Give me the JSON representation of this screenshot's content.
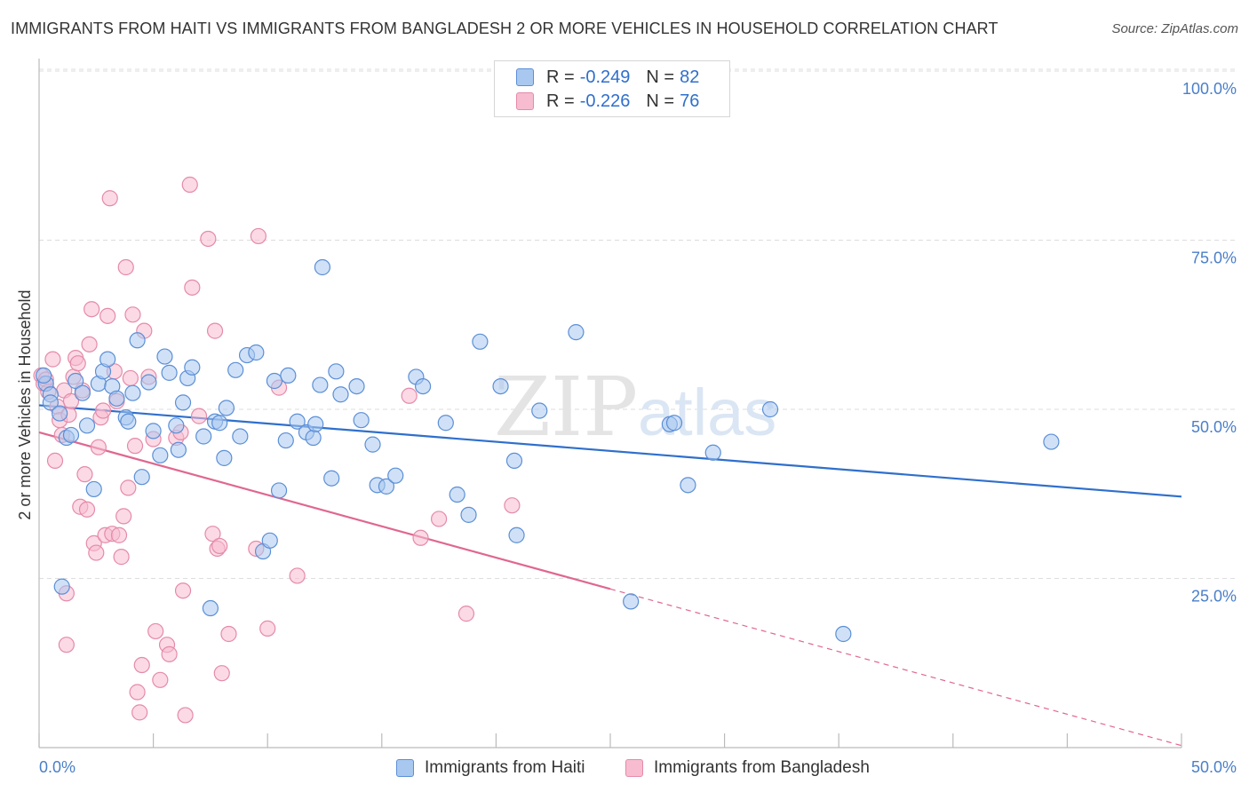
{
  "title": "IMMIGRANTS FROM HAITI VS IMMIGRANTS FROM BANGLADESH 2 OR MORE VEHICLES IN HOUSEHOLD CORRELATION CHART",
  "source": "Source: ZipAtlas.com",
  "watermark": "ZIPatlas",
  "colors": {
    "haiti_fill": "#a9c8f0",
    "haiti_stroke": "#5b8fd6",
    "haiti_line": "#2f6fcc",
    "bangladesh_fill": "#f7bcd0",
    "bangladesh_stroke": "#e58aa9",
    "bangladesh_line": "#e0678f",
    "grid": "#dddddd",
    "tick_text": "#4a7fc8"
  },
  "legend": {
    "haiti": {
      "r_label": "R =",
      "r_value": "-0.249",
      "n_label": "N =",
      "n_value": "82"
    },
    "bangladesh": {
      "r_label": "R =",
      "r_value": "-0.226",
      "n_label": "N =",
      "n_value": "76"
    }
  },
  "bottom_legend": {
    "haiti": "Immigrants from Haiti",
    "bangladesh": "Immigrants from Bangladesh"
  },
  "chart_data": {
    "type": "scatter",
    "title": "IMMIGRANTS FROM HAITI VS IMMIGRANTS FROM BANGLADESH 2 OR MORE VEHICLES IN HOUSEHOLD CORRELATION CHART",
    "xlabel": "",
    "ylabel": "2 or more Vehicles in Household",
    "xlim": [
      0,
      50
    ],
    "ylim": [
      0,
      100
    ],
    "x_tick_labels": [
      "0.0%",
      "50.0%"
    ],
    "y_ticks": [
      25,
      50,
      75,
      100
    ],
    "y_tick_labels": [
      "25.0%",
      "50.0%",
      "75.0%",
      "100.0%"
    ],
    "grid": true,
    "legend_position": "top-center",
    "series": [
      {
        "name": "Immigrants from Haiti",
        "r": -0.249,
        "n": 82,
        "trend": {
          "x": [
            0,
            50
          ],
          "y": [
            50.6,
            37.1
          ],
          "dashed_from_x": null
        },
        "points": [
          [
            0.3,
            53.8
          ],
          [
            0.5,
            52.2
          ],
          [
            0.5,
            51.0
          ],
          [
            0.9,
            49.4
          ],
          [
            1.0,
            23.8
          ],
          [
            1.2,
            45.8
          ],
          [
            1.4,
            46.2
          ],
          [
            1.6,
            54.2
          ],
          [
            1.9,
            52.4
          ],
          [
            2.1,
            47.6
          ],
          [
            2.4,
            38.2
          ],
          [
            2.6,
            53.8
          ],
          [
            2.8,
            55.6
          ],
          [
            3.0,
            57.4
          ],
          [
            3.2,
            53.4
          ],
          [
            3.4,
            51.6
          ],
          [
            3.8,
            48.8
          ],
          [
            3.9,
            48.2
          ],
          [
            4.1,
            52.4
          ],
          [
            4.3,
            60.2
          ],
          [
            4.5,
            40.0
          ],
          [
            4.8,
            54.0
          ],
          [
            5.0,
            46.8
          ],
          [
            5.3,
            43.2
          ],
          [
            5.5,
            57.8
          ],
          [
            5.7,
            55.4
          ],
          [
            6.0,
            47.6
          ],
          [
            6.1,
            44.0
          ],
          [
            6.3,
            51.0
          ],
          [
            6.5,
            54.6
          ],
          [
            6.7,
            56.2
          ],
          [
            7.2,
            46.0
          ],
          [
            7.5,
            20.6
          ],
          [
            7.7,
            48.2
          ],
          [
            7.9,
            48.0
          ],
          [
            8.1,
            42.8
          ],
          [
            8.2,
            50.2
          ],
          [
            8.6,
            55.8
          ],
          [
            8.8,
            46.0
          ],
          [
            9.1,
            58.0
          ],
          [
            9.5,
            58.4
          ],
          [
            9.8,
            29.0
          ],
          [
            10.1,
            30.6
          ],
          [
            10.3,
            54.2
          ],
          [
            10.5,
            38.0
          ],
          [
            10.8,
            45.4
          ],
          [
            10.9,
            55.0
          ],
          [
            11.3,
            48.2
          ],
          [
            11.7,
            46.6
          ],
          [
            12.0,
            45.8
          ],
          [
            12.1,
            47.8
          ],
          [
            12.3,
            53.6
          ],
          [
            12.4,
            71.0
          ],
          [
            12.8,
            39.8
          ],
          [
            13.0,
            55.6
          ],
          [
            13.2,
            52.2
          ],
          [
            13.9,
            53.4
          ],
          [
            14.1,
            48.4
          ],
          [
            14.6,
            44.8
          ],
          [
            14.8,
            38.8
          ],
          [
            15.2,
            38.6
          ],
          [
            15.6,
            40.2
          ],
          [
            16.5,
            54.8
          ],
          [
            16.8,
            53.4
          ],
          [
            17.8,
            48.0
          ],
          [
            18.3,
            37.4
          ],
          [
            18.8,
            34.4
          ],
          [
            19.3,
            60.0
          ],
          [
            20.2,
            53.4
          ],
          [
            20.8,
            42.4
          ],
          [
            20.9,
            31.4
          ],
          [
            21.9,
            49.8
          ],
          [
            23.5,
            61.4
          ],
          [
            25.9,
            21.6
          ],
          [
            27.6,
            47.8
          ],
          [
            27.8,
            48.0
          ],
          [
            28.4,
            38.8
          ],
          [
            29.5,
            43.6
          ],
          [
            32.0,
            50.0
          ],
          [
            35.2,
            16.8
          ],
          [
            44.3,
            45.2
          ],
          [
            0.2,
            55.0
          ]
        ]
      },
      {
        "name": "Immigrants from Bangladesh",
        "r": -0.226,
        "n": 76,
        "trend": {
          "x": [
            0,
            50
          ],
          "y": [
            46.6,
            0.3
          ],
          "dashed_from_x": 25.0
        },
        "points": [
          [
            0.1,
            55.0
          ],
          [
            0.2,
            53.8
          ],
          [
            0.3,
            54.4
          ],
          [
            0.4,
            52.6
          ],
          [
            0.6,
            57.4
          ],
          [
            0.7,
            42.4
          ],
          [
            0.8,
            50.4
          ],
          [
            0.9,
            48.4
          ],
          [
            1.0,
            46.2
          ],
          [
            1.1,
            52.8
          ],
          [
            1.2,
            22.8
          ],
          [
            1.2,
            15.2
          ],
          [
            1.3,
            49.2
          ],
          [
            1.4,
            51.2
          ],
          [
            1.5,
            54.8
          ],
          [
            1.6,
            57.6
          ],
          [
            1.7,
            56.8
          ],
          [
            1.8,
            35.6
          ],
          [
            1.9,
            52.8
          ],
          [
            2.0,
            40.4
          ],
          [
            2.1,
            35.2
          ],
          [
            2.2,
            59.6
          ],
          [
            2.3,
            64.8
          ],
          [
            2.4,
            30.2
          ],
          [
            2.5,
            28.8
          ],
          [
            2.6,
            44.4
          ],
          [
            2.7,
            48.8
          ],
          [
            2.8,
            49.8
          ],
          [
            2.9,
            31.4
          ],
          [
            3.0,
            63.8
          ],
          [
            3.1,
            81.2
          ],
          [
            3.2,
            31.6
          ],
          [
            3.3,
            55.6
          ],
          [
            3.4,
            51.2
          ],
          [
            3.5,
            31.4
          ],
          [
            3.6,
            28.2
          ],
          [
            3.7,
            34.2
          ],
          [
            3.8,
            71.0
          ],
          [
            3.9,
            38.4
          ],
          [
            4.0,
            54.6
          ],
          [
            4.1,
            64.0
          ],
          [
            4.2,
            44.6
          ],
          [
            4.3,
            8.2
          ],
          [
            4.4,
            5.2
          ],
          [
            4.5,
            12.2
          ],
          [
            4.6,
            61.6
          ],
          [
            4.8,
            54.8
          ],
          [
            5.0,
            45.6
          ],
          [
            5.1,
            17.2
          ],
          [
            5.3,
            10.0
          ],
          [
            5.6,
            15.2
          ],
          [
            5.7,
            13.8
          ],
          [
            6.0,
            45.8
          ],
          [
            6.2,
            46.6
          ],
          [
            6.3,
            23.2
          ],
          [
            6.4,
            4.8
          ],
          [
            6.6,
            83.2
          ],
          [
            6.7,
            68.0
          ],
          [
            7.0,
            49.0
          ],
          [
            7.4,
            75.2
          ],
          [
            7.6,
            31.6
          ],
          [
            7.7,
            61.6
          ],
          [
            7.8,
            29.4
          ],
          [
            7.9,
            29.8
          ],
          [
            8.0,
            11.0
          ],
          [
            8.3,
            16.8
          ],
          [
            9.5,
            29.4
          ],
          [
            9.6,
            75.6
          ],
          [
            10.0,
            17.6
          ],
          [
            10.5,
            53.2
          ],
          [
            11.3,
            25.4
          ],
          [
            16.2,
            52.0
          ],
          [
            16.7,
            31.0
          ],
          [
            17.5,
            33.8
          ],
          [
            18.7,
            19.8
          ],
          [
            20.7,
            35.8
          ]
        ]
      }
    ]
  }
}
